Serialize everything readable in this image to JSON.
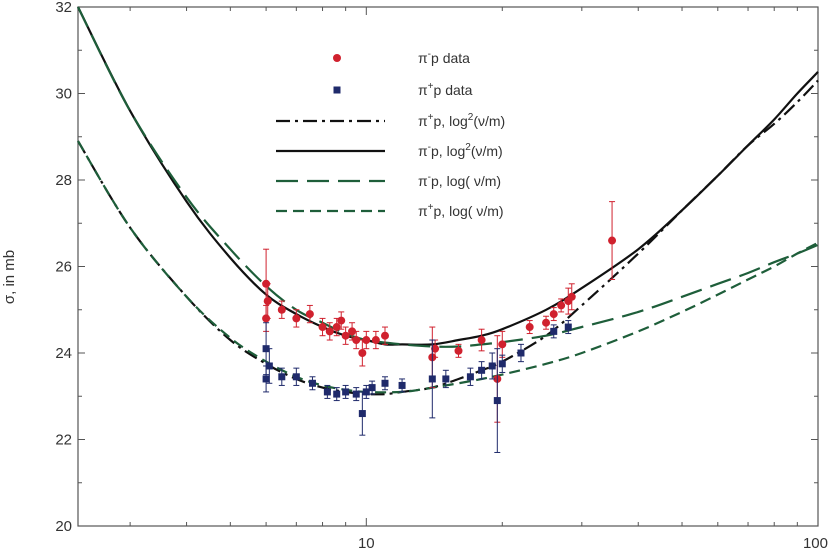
{
  "chart_data": {
    "type": "scatter",
    "ylabel": "σ, in mb",
    "xlabel": "",
    "x_scale": "log",
    "xlim": [
      2.3,
      100
    ],
    "ylim": [
      20,
      32
    ],
    "x_ticks": [
      10,
      100
    ],
    "x_tick_labels": [
      "10",
      "100"
    ],
    "y_ticks": [
      20,
      22,
      24,
      26,
      28,
      30,
      32
    ],
    "y_tick_labels": [
      "20",
      "22",
      "24",
      "26",
      "28",
      "30",
      "32"
    ],
    "colors": {
      "pi_minus_data": "#d0212e",
      "pi_plus_data": "#1f2a6b",
      "log2_fit": "#111111",
      "log_fit": "#1e5e3a",
      "frame": "#555555"
    },
    "legend": [
      {
        "key": "pim_data",
        "base": "π",
        "sup": "-",
        "rest": "p data",
        "style": "marker-circle",
        "color": "#d0212e"
      },
      {
        "key": "pip_data",
        "base": "π",
        "sup": "+",
        "rest": "p data",
        "style": "marker-square",
        "color": "#1f2a6b"
      },
      {
        "key": "pip_log2",
        "base": "π",
        "sup": "+",
        "rest": "p, log",
        "sup2": "2",
        "rest2": "(ν/m)",
        "style": "dashdot",
        "color": "#111111"
      },
      {
        "key": "pim_log2",
        "base": "π",
        "sup": "-",
        "rest": "p, log",
        "sup2": "2",
        "rest2": "(ν/m)",
        "style": "solid",
        "color": "#111111"
      },
      {
        "key": "pim_log",
        "base": "π",
        "sup": "-",
        "rest": "p, log( ν/m)",
        "style": "longdash",
        "color": "#1e5e3a"
      },
      {
        "key": "pip_log",
        "base": "π",
        "sup": "+",
        "rest": "p, log( ν/m)",
        "style": "shortdash",
        "color": "#1e5e3a"
      }
    ],
    "series": [
      {
        "name": "π⁻p data",
        "kind": "points",
        "marker": "circle",
        "color": "#d0212e",
        "points": [
          {
            "x": 6.0,
            "y": 25.6,
            "err": 0.8
          },
          {
            "x": 6.05,
            "y": 25.2,
            "err": 0.4
          },
          {
            "x": 6.0,
            "y": 24.8,
            "err": 0.3
          },
          {
            "x": 6.5,
            "y": 25.0,
            "err": 0.2
          },
          {
            "x": 7.0,
            "y": 24.8,
            "err": 0.2
          },
          {
            "x": 7.5,
            "y": 24.9,
            "err": 0.2
          },
          {
            "x": 8.0,
            "y": 24.6,
            "err": 0.2
          },
          {
            "x": 8.3,
            "y": 24.5,
            "err": 0.2
          },
          {
            "x": 8.6,
            "y": 24.6,
            "err": 0.2
          },
          {
            "x": 8.8,
            "y": 24.75,
            "err": 0.2
          },
          {
            "x": 9.0,
            "y": 24.4,
            "err": 0.2
          },
          {
            "x": 9.3,
            "y": 24.5,
            "err": 0.2
          },
          {
            "x": 9.5,
            "y": 24.3,
            "err": 0.2
          },
          {
            "x": 9.8,
            "y": 24.0,
            "err": 0.3
          },
          {
            "x": 10.0,
            "y": 24.3,
            "err": 0.2
          },
          {
            "x": 10.5,
            "y": 24.3,
            "err": 0.2
          },
          {
            "x": 11.0,
            "y": 24.4,
            "err": 0.2
          },
          {
            "x": 14.0,
            "y": 23.9,
            "err": 0.7
          },
          {
            "x": 14.2,
            "y": 24.1,
            "err": 0.2
          },
          {
            "x": 16.0,
            "y": 24.05,
            "err": 0.15
          },
          {
            "x": 18.0,
            "y": 24.3,
            "err": 0.25
          },
          {
            "x": 19.5,
            "y": 23.4,
            "err": 1.0
          },
          {
            "x": 20.0,
            "y": 24.2,
            "err": 0.3
          },
          {
            "x": 23.0,
            "y": 24.6,
            "err": 0.15
          },
          {
            "x": 25.0,
            "y": 24.7,
            "err": 0.15
          },
          {
            "x": 26.0,
            "y": 24.9,
            "err": 0.15
          },
          {
            "x": 27.0,
            "y": 25.1,
            "err": 0.15
          },
          {
            "x": 28.0,
            "y": 25.2,
            "err": 0.3
          },
          {
            "x": 28.5,
            "y": 25.3,
            "err": 0.3
          },
          {
            "x": 35.0,
            "y": 26.6,
            "err": 0.9
          }
        ]
      },
      {
        "name": "π⁺p data",
        "kind": "points",
        "marker": "square",
        "color": "#1f2a6b",
        "points": [
          {
            "x": 6.0,
            "y": 24.1,
            "err": 0.6
          },
          {
            "x": 6.1,
            "y": 23.7,
            "err": 0.4
          },
          {
            "x": 6.0,
            "y": 23.4,
            "err": 0.3
          },
          {
            "x": 6.5,
            "y": 23.45,
            "err": 0.2
          },
          {
            "x": 7.0,
            "y": 23.45,
            "err": 0.2
          },
          {
            "x": 7.6,
            "y": 23.3,
            "err": 0.15
          },
          {
            "x": 8.2,
            "y": 23.1,
            "err": 0.15
          },
          {
            "x": 8.6,
            "y": 23.05,
            "err": 0.15
          },
          {
            "x": 9.0,
            "y": 23.1,
            "err": 0.15
          },
          {
            "x": 9.5,
            "y": 23.05,
            "err": 0.15
          },
          {
            "x": 9.8,
            "y": 22.6,
            "err": 0.5
          },
          {
            "x": 10.0,
            "y": 23.1,
            "err": 0.15
          },
          {
            "x": 10.3,
            "y": 23.2,
            "err": 0.15
          },
          {
            "x": 11.0,
            "y": 23.3,
            "err": 0.15
          },
          {
            "x": 12.0,
            "y": 23.25,
            "err": 0.15
          },
          {
            "x": 14.0,
            "y": 23.4,
            "err": 0.9
          },
          {
            "x": 15.0,
            "y": 23.4,
            "err": 0.2
          },
          {
            "x": 17.0,
            "y": 23.45,
            "err": 0.2
          },
          {
            "x": 18.0,
            "y": 23.6,
            "err": 0.2
          },
          {
            "x": 19.0,
            "y": 23.7,
            "err": 0.3
          },
          {
            "x": 19.5,
            "y": 22.9,
            "err": 1.2
          },
          {
            "x": 20.0,
            "y": 23.75,
            "err": 0.2
          },
          {
            "x": 22.0,
            "y": 24.0,
            "err": 0.2
          },
          {
            "x": 26.0,
            "y": 24.5,
            "err": 0.15
          },
          {
            "x": 28.0,
            "y": 24.6,
            "err": 0.15
          }
        ]
      },
      {
        "name": "π⁺p, log²(ν/m)",
        "kind": "curve",
        "style": "dashdot",
        "color": "#111111",
        "points": [
          [
            2.3,
            28.9
          ],
          [
            3,
            26.9
          ],
          [
            4,
            25.3
          ],
          [
            5,
            24.3
          ],
          [
            6,
            23.75
          ],
          [
            7,
            23.4
          ],
          [
            8,
            23.2
          ],
          [
            9,
            23.1
          ],
          [
            10,
            23.05
          ],
          [
            11,
            23.05
          ],
          [
            12,
            23.1
          ],
          [
            14,
            23.2
          ],
          [
            16,
            23.4
          ],
          [
            18,
            23.6
          ],
          [
            20,
            23.8
          ],
          [
            25,
            24.4
          ],
          [
            30,
            25.1
          ],
          [
            40,
            26.3
          ],
          [
            50,
            27.3
          ],
          [
            60,
            28.1
          ],
          [
            70,
            28.8
          ],
          [
            80,
            29.3
          ],
          [
            90,
            29.8
          ],
          [
            100,
            30.3
          ]
        ]
      },
      {
        "name": "π⁻p, log²(ν/m)",
        "kind": "curve",
        "style": "solid",
        "color": "#111111",
        "points": [
          [
            2.3,
            32.0
          ],
          [
            3,
            29.6
          ],
          [
            4,
            27.5
          ],
          [
            5,
            26.2
          ],
          [
            6,
            25.35
          ],
          [
            7,
            24.9
          ],
          [
            8,
            24.6
          ],
          [
            9,
            24.4
          ],
          [
            10,
            24.3
          ],
          [
            11,
            24.2
          ],
          [
            12,
            24.2
          ],
          [
            14,
            24.2
          ],
          [
            16,
            24.3
          ],
          [
            18,
            24.4
          ],
          [
            20,
            24.55
          ],
          [
            25,
            25.0
          ],
          [
            30,
            25.5
          ],
          [
            40,
            26.4
          ],
          [
            50,
            27.3
          ],
          [
            60,
            28.1
          ],
          [
            70,
            28.8
          ],
          [
            80,
            29.4
          ],
          [
            90,
            30.0
          ],
          [
            100,
            30.5
          ]
        ]
      },
      {
        "name": "π⁻p, log( ν/m)",
        "kind": "curve",
        "style": "longdash",
        "color": "#1e5e3a",
        "points": [
          [
            2.3,
            32.0
          ],
          [
            3,
            29.6
          ],
          [
            4,
            27.6
          ],
          [
            5,
            26.4
          ],
          [
            6,
            25.55
          ],
          [
            7,
            25.0
          ],
          [
            8,
            24.7
          ],
          [
            9,
            24.45
          ],
          [
            10,
            24.3
          ],
          [
            12,
            24.2
          ],
          [
            14,
            24.15
          ],
          [
            16,
            24.15
          ],
          [
            18,
            24.2
          ],
          [
            20,
            24.25
          ],
          [
            25,
            24.4
          ],
          [
            30,
            24.6
          ],
          [
            40,
            24.95
          ],
          [
            50,
            25.3
          ],
          [
            60,
            25.6
          ],
          [
            70,
            25.85
          ],
          [
            80,
            26.1
          ],
          [
            90,
            26.3
          ],
          [
            100,
            26.5
          ]
        ]
      },
      {
        "name": "π⁺p, log( ν/m)",
        "kind": "curve",
        "style": "shortdash",
        "color": "#1e5e3a",
        "points": [
          [
            2.3,
            28.9
          ],
          [
            3,
            26.9
          ],
          [
            4,
            25.3
          ],
          [
            5,
            24.35
          ],
          [
            6,
            23.8
          ],
          [
            7,
            23.45
          ],
          [
            8,
            23.25
          ],
          [
            9,
            23.15
          ],
          [
            10,
            23.1
          ],
          [
            12,
            23.1
          ],
          [
            14,
            23.2
          ],
          [
            16,
            23.3
          ],
          [
            18,
            23.4
          ],
          [
            20,
            23.5
          ],
          [
            25,
            23.75
          ],
          [
            30,
            24.0
          ],
          [
            40,
            24.5
          ],
          [
            50,
            24.95
          ],
          [
            60,
            25.35
          ],
          [
            70,
            25.7
          ],
          [
            80,
            26.0
          ],
          [
            90,
            26.3
          ],
          [
            100,
            26.55
          ]
        ]
      }
    ]
  }
}
